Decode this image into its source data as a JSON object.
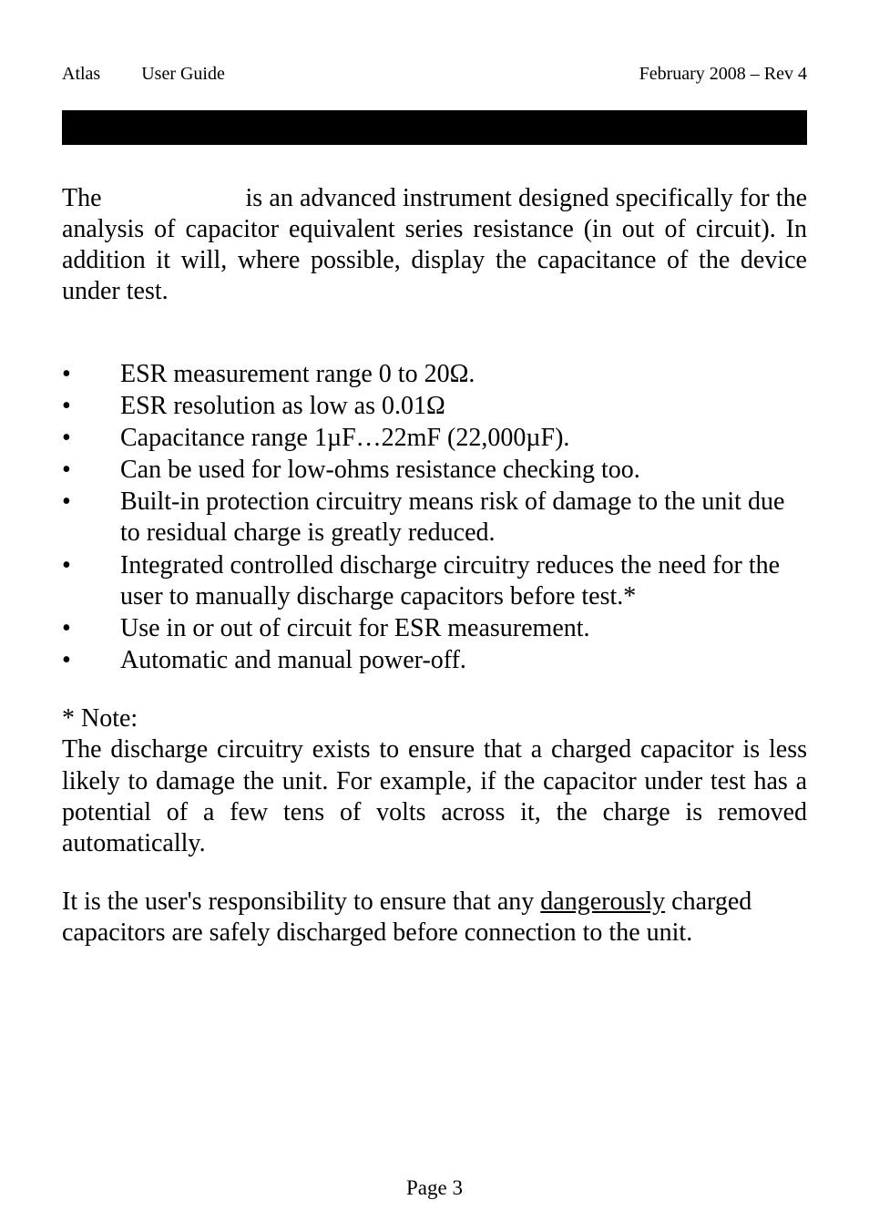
{
  "header": {
    "left1": "Atlas",
    "left2": "User Guide",
    "right": "February 2008 – Rev 4"
  },
  "intro": {
    "prefix": "The",
    "rest": "is an advanced instrument designed specifically for the analysis of capacitor equivalent series resistance (in out of circuit). In addition it will, where possible, display the capacitance of the device under test."
  },
  "features": [
    "ESR measurement range 0 to 20Ω.",
    "ESR resolution as low as 0.01Ω",
    "Capacitance range 1µF…22mF (22,000µF).",
    "Can be used for low-ohms resistance checking too.",
    "Built-in protection circuitry means risk of damage to the unit due to residual charge is greatly reduced.",
    "Integrated controlled discharge circuitry reduces the need for the user to manually discharge capacitors before test.*",
    "Use in or out of circuit for ESR measurement.",
    "Automatic and manual power-off."
  ],
  "note": {
    "label": "* Note:",
    "body": "The discharge circuitry exists to ensure that a charged capacitor is less likely to damage the unit. For example, if the capacitor under test has a potential of a few tens of volts across it, the charge is removed automatically."
  },
  "responsibility": {
    "part1": "It is the user's responsibility to ensure that any ",
    "underlined": "dangerously",
    "part2": " charged capacitors are safely discharged before connection to the unit."
  },
  "page": "Page 3",
  "colors": {
    "bg": "#ffffff",
    "text": "#000000",
    "bar": "#000000"
  },
  "typography": {
    "body_fontsize": 28,
    "header_fontsize": 20,
    "pagenum_fontsize": 23,
    "font_family": "Times New Roman"
  }
}
